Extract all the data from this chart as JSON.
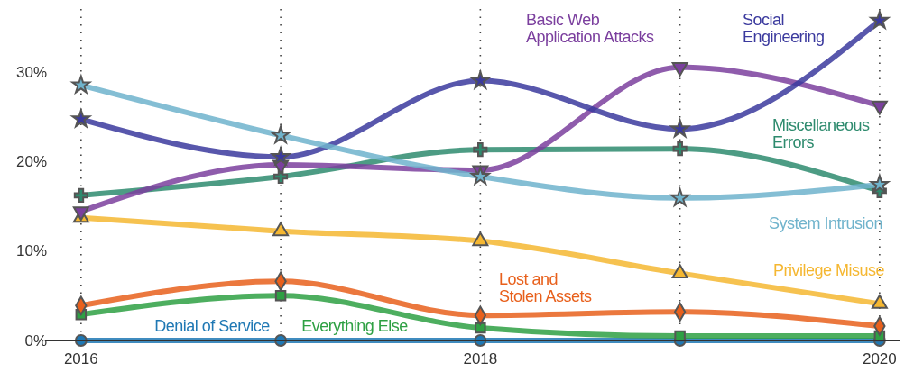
{
  "chart_data": {
    "type": "line",
    "x": [
      2016,
      2017,
      2018,
      2019,
      2020
    ],
    "xlim": [
      2015.82,
      2020.1
    ],
    "xticks": [
      2016,
      {
        "value": 2017,
        "label": null
      },
      2018,
      {
        "value": 2019,
        "label": null
      },
      2020
    ],
    "ylim": [
      0,
      37
    ],
    "yticks": [
      {
        "value": 0,
        "label": "0%"
      },
      {
        "value": 10,
        "label": "10%"
      },
      {
        "value": 20,
        "label": "20%"
      },
      {
        "value": 30,
        "label": "30%"
      }
    ],
    "grid": "x",
    "legend": false,
    "series": [
      {
        "name": "System Intrusion",
        "color": "#6fb3cc",
        "marker": "star",
        "values": [
          28.5,
          22.9,
          18.3,
          15.9,
          17.4
        ]
      },
      {
        "name": "Social Engineering",
        "color": "#3b3a9e",
        "marker": "star",
        "values": [
          24.7,
          20.5,
          29.0,
          23.6,
          35.7
        ]
      },
      {
        "name": "Basic Web Application Attacks",
        "color": "#7b3f9e",
        "marker": "triangle",
        "values": [
          14.4,
          19.6,
          19.0,
          30.5,
          26.2
        ]
      },
      {
        "name": "Miscellaneous Errors",
        "color": "#2e8b6e",
        "marker": "cross",
        "values": [
          16.2,
          18.3,
          21.3,
          21.4,
          16.7
        ]
      },
      {
        "name": "Privilege Misuse",
        "color": "#f5b731",
        "marker": "triangle",
        "values": [
          13.7,
          12.2,
          11.1,
          7.5,
          4.1
        ]
      },
      {
        "name": "Lost and Stolen Assets",
        "color": "#e8601c",
        "marker": "diamond",
        "values": [
          3.9,
          6.6,
          2.8,
          3.2,
          1.6
        ]
      },
      {
        "name": "Everything Else",
        "color": "#2ea043",
        "marker": "square",
        "values": [
          2.9,
          5.0,
          1.4,
          0.5,
          0.5
        ]
      },
      {
        "name": "Denial of Service",
        "color": "#1f78b4",
        "marker": "circle",
        "values": [
          0,
          0,
          0,
          0,
          0
        ]
      }
    ]
  }
}
